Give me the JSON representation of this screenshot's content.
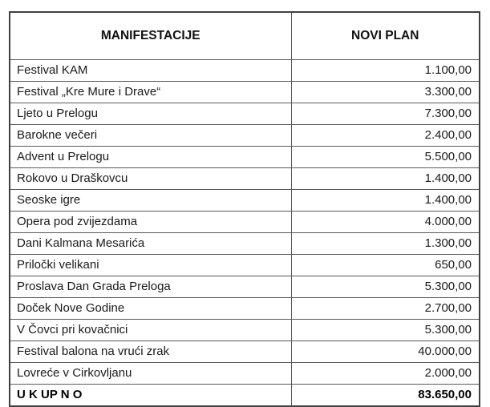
{
  "page": {
    "background": "#ffffff",
    "text_color": "#1a1a1a",
    "border_color_outer": "#404040",
    "border_color_inner": "#595959"
  },
  "table": {
    "columns": [
      "MANIFESTACIJE",
      "NOVI PLAN"
    ],
    "rows": [
      {
        "name": "Festival KAM",
        "value": "1.100,00"
      },
      {
        "name": "Festival „Kre Mure i Drave“",
        "value": "3.300,00"
      },
      {
        "name": "Ljeto u Prelogu",
        "value": "7.300,00"
      },
      {
        "name": "Barokne večeri",
        "value": "2.400,00"
      },
      {
        "name": "Advent u Prelogu",
        "value": "5.500,00"
      },
      {
        "name": "Rokovo u Draškovcu",
        "value": "1.400,00"
      },
      {
        "name": "Seoske igre",
        "value": "1.400,00"
      },
      {
        "name": "Opera pod zvijezdama",
        "value": "4.000,00"
      },
      {
        "name": "Dani Kalmana Mesarića",
        "value": "1.300,00"
      },
      {
        "name": "Priločki velikani",
        "value": "650,00"
      },
      {
        "name": "Proslava Dan Grada Preloga",
        "value": "5.300,00"
      },
      {
        "name": "Doček Nove Godine",
        "value": "2.700,00"
      },
      {
        "name": "V Čovci pri kovačnici",
        "value": "5.300,00"
      },
      {
        "name": "Festival balona na vrući zrak",
        "value": "40.000,00"
      },
      {
        "name": "Lovreće v Cirkovljanu",
        "value": "2.000,00"
      }
    ],
    "total": {
      "label": "U K UP N O",
      "value": "83.650,00"
    }
  }
}
